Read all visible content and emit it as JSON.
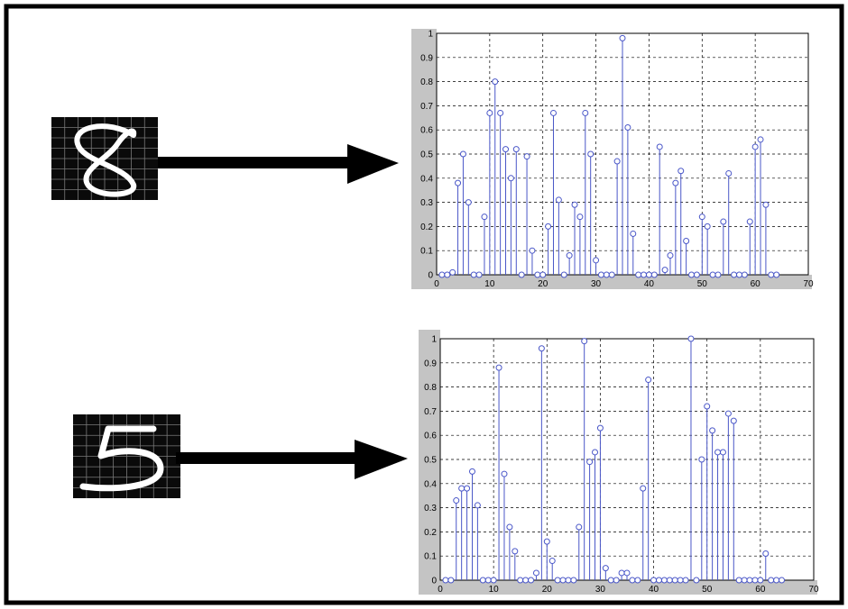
{
  "colors": {
    "frame": "#000000",
    "stem": "#4a57c8",
    "marker": "#4a57c8",
    "grid": "#000000",
    "axis_band": "#c4c4c4"
  },
  "icons": {
    "digit_eight": "digit-8-image",
    "digit_five": "digit-5-image",
    "arrow": "right-arrow"
  },
  "chart_data": [
    {
      "type": "stem",
      "title": "",
      "xlabel": "",
      "ylabel": "",
      "grid": true,
      "xlim": [
        0,
        70
      ],
      "ylim": [
        0,
        1
      ],
      "xticks": [
        0,
        10,
        20,
        30,
        40,
        50,
        60,
        70
      ],
      "yticks": [
        0,
        0.1,
        0.2,
        0.3,
        0.4,
        0.5,
        0.6,
        0.7,
        0.8,
        0.9,
        1
      ],
      "x": [
        1,
        2,
        3,
        4,
        5,
        6,
        7,
        8,
        9,
        10,
        11,
        12,
        13,
        14,
        15,
        16,
        17,
        18,
        19,
        20,
        21,
        22,
        23,
        24,
        25,
        26,
        27,
        28,
        29,
        30,
        31,
        32,
        33,
        34,
        35,
        36,
        37,
        38,
        39,
        40,
        41,
        42,
        43,
        44,
        45,
        46,
        47,
        48,
        49,
        50,
        51,
        52,
        53,
        54,
        55,
        56,
        57,
        58,
        59,
        60,
        61,
        62,
        63,
        64
      ],
      "values": [
        0,
        0,
        0.01,
        0.38,
        0.5,
        0.3,
        0,
        0,
        0.24,
        0.67,
        0.8,
        0.67,
        0.52,
        0.4,
        0.52,
        0,
        0.49,
        0.1,
        0,
        0,
        0.2,
        0.67,
        0.31,
        0,
        0.08,
        0.29,
        0.24,
        0.67,
        0.5,
        0.06,
        0,
        0,
        0,
        0.47,
        0.98,
        0.61,
        0.17,
        0,
        0,
        0,
        0,
        0.53,
        0.02,
        0.08,
        0.38,
        0.43,
        0.14,
        0,
        0,
        0.24,
        0.2,
        0,
        0,
        0.22,
        0.42,
        0,
        0,
        0,
        0.22,
        0.53,
        0.56,
        0.29,
        0,
        0
      ]
    },
    {
      "type": "stem",
      "title": "",
      "xlabel": "",
      "ylabel": "",
      "grid": true,
      "xlim": [
        0,
        70
      ],
      "ylim": [
        0,
        1
      ],
      "xticks": [
        0,
        10,
        20,
        30,
        40,
        50,
        60,
        70
      ],
      "yticks": [
        0,
        0.1,
        0.2,
        0.3,
        0.4,
        0.5,
        0.6,
        0.7,
        0.8,
        0.9,
        1
      ],
      "x": [
        1,
        2,
        3,
        4,
        5,
        6,
        7,
        8,
        9,
        10,
        11,
        12,
        13,
        14,
        15,
        16,
        17,
        18,
        19,
        20,
        21,
        22,
        23,
        24,
        25,
        26,
        27,
        28,
        29,
        30,
        31,
        32,
        33,
        34,
        35,
        36,
        37,
        38,
        39,
        40,
        41,
        42,
        43,
        44,
        45,
        46,
        47,
        48,
        49,
        50,
        51,
        52,
        53,
        54,
        55,
        56,
        57,
        58,
        59,
        60,
        61,
        62,
        63,
        64
      ],
      "values": [
        0,
        0,
        0.33,
        0.38,
        0.38,
        0.45,
        0.31,
        0,
        0,
        0,
        0.88,
        0.44,
        0.22,
        0.12,
        0,
        0,
        0,
        0.03,
        0.96,
        0.16,
        0.08,
        0,
        0,
        0,
        0,
        0.22,
        0.99,
        0.49,
        0.53,
        0.63,
        0.05,
        0,
        0,
        0.03,
        0.03,
        0,
        0,
        0.38,
        0.83,
        0,
        0,
        0,
        0,
        0,
        0,
        0,
        1.0,
        0,
        0.5,
        0.72,
        0.62,
        0.53,
        0.53,
        0.69,
        0.66,
        0,
        0,
        0,
        0,
        0,
        0.11,
        0,
        0,
        0
      ]
    }
  ]
}
